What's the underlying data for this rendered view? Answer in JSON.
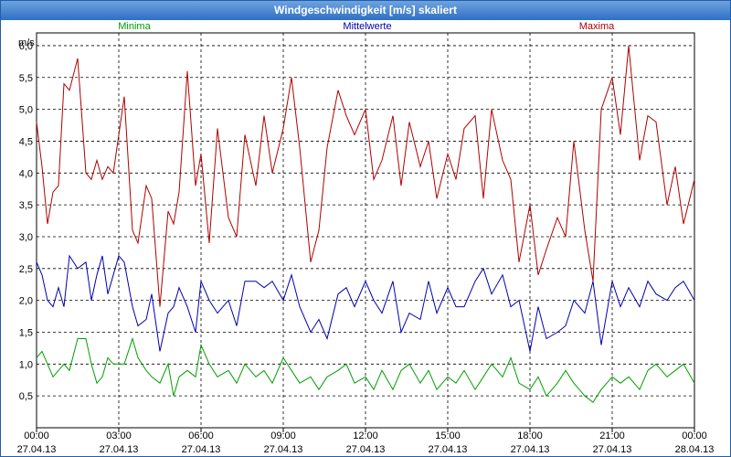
{
  "window": {
    "title": "Windgeschwindigkeit [m/s] skaliert"
  },
  "chart_data": {
    "type": "line",
    "title": "Windgeschwindigkeit [m/s] skaliert",
    "ylabel": "m/s",
    "ylim": [
      0,
      6.2
    ],
    "xlim": [
      0,
      24
    ],
    "y_ticks": [
      "0,5",
      "1,0",
      "1,5",
      "2,0",
      "2,5",
      "3,0",
      "3,5",
      "4,0",
      "4,5",
      "5,0",
      "5,5",
      "6,0"
    ],
    "x_ticks": [
      {
        "time": "00:00",
        "date": "27.04.13"
      },
      {
        "time": "03:00",
        "date": "27.04.13"
      },
      {
        "time": "06:00",
        "date": "27.04.13"
      },
      {
        "time": "09:00",
        "date": "27.04.13"
      },
      {
        "time": "12:00",
        "date": "27.04.13"
      },
      {
        "time": "15:00",
        "date": "27.04.13"
      },
      {
        "time": "18:00",
        "date": "27.04.13"
      },
      {
        "time": "21:00",
        "date": "27.04.13"
      },
      {
        "time": "00:00",
        "date": "28.04.13"
      }
    ],
    "grid": true,
    "series": [
      {
        "name": "Minima",
        "color": "#00a000",
        "x": [
          0,
          0.2,
          0.4,
          0.6,
          0.8,
          1,
          1.2,
          1.5,
          1.8,
          2,
          2.2,
          2.4,
          2.6,
          2.8,
          3,
          3.2,
          3.5,
          3.7,
          4,
          4.2,
          4.5,
          4.8,
          5,
          5.2,
          5.5,
          5.8,
          6,
          6.3,
          6.6,
          7,
          7.3,
          7.6,
          8,
          8.3,
          8.6,
          9,
          9.3,
          9.6,
          10,
          10.3,
          10.6,
          11,
          11.3,
          11.6,
          12,
          12.3,
          12.6,
          13,
          13.3,
          13.6,
          14,
          14.3,
          14.6,
          15,
          15.3,
          15.6,
          16,
          16.3,
          16.6,
          17,
          17.3,
          17.6,
          18,
          18.3,
          18.6,
          19,
          19.3,
          19.6,
          20,
          20.3,
          20.6,
          21,
          21.3,
          21.6,
          22,
          22.3,
          22.6,
          23,
          23.3,
          23.6,
          24
        ],
        "y": [
          1.1,
          1.2,
          1.0,
          0.8,
          0.9,
          1.0,
          0.9,
          1.4,
          1.4,
          1.0,
          0.7,
          0.8,
          1.1,
          1.0,
          1.0,
          1.0,
          1.4,
          1.1,
          0.9,
          0.8,
          0.7,
          1.0,
          0.5,
          0.8,
          0.9,
          0.8,
          1.3,
          1.0,
          0.8,
          0.9,
          0.7,
          1.0,
          0.8,
          0.9,
          0.7,
          1.1,
          0.9,
          0.7,
          0.8,
          0.6,
          0.8,
          0.9,
          1.0,
          0.7,
          0.8,
          0.6,
          0.9,
          0.6,
          0.9,
          1.0,
          0.7,
          0.9,
          0.6,
          0.8,
          0.7,
          0.9,
          0.6,
          0.8,
          1.0,
          0.8,
          1.1,
          0.7,
          0.6,
          0.8,
          0.5,
          0.7,
          0.9,
          0.7,
          0.5,
          0.4,
          0.6,
          0.8,
          0.7,
          0.8,
          0.6,
          0.9,
          1.0,
          0.8,
          0.9,
          1.0,
          0.7
        ]
      },
      {
        "name": "Mittelwerte",
        "color": "#0000b0",
        "x": [
          0,
          0.2,
          0.4,
          0.6,
          0.8,
          1,
          1.2,
          1.5,
          1.8,
          2,
          2.2,
          2.4,
          2.6,
          2.8,
          3,
          3.2,
          3.5,
          3.7,
          4,
          4.2,
          4.5,
          4.8,
          5,
          5.2,
          5.5,
          5.8,
          6,
          6.3,
          6.6,
          7,
          7.3,
          7.6,
          8,
          8.3,
          8.6,
          9,
          9.3,
          9.6,
          10,
          10.3,
          10.6,
          11,
          11.3,
          11.6,
          12,
          12.3,
          12.6,
          13,
          13.3,
          13.6,
          14,
          14.3,
          14.6,
          15,
          15.3,
          15.6,
          16,
          16.3,
          16.6,
          17,
          17.3,
          17.6,
          18,
          18.3,
          18.6,
          19,
          19.3,
          19.6,
          20,
          20.3,
          20.6,
          21,
          21.3,
          21.6,
          22,
          22.3,
          22.6,
          23,
          23.3,
          23.6,
          24
        ],
        "y": [
          2.6,
          2.4,
          2.0,
          1.9,
          2.2,
          1.9,
          2.7,
          2.5,
          2.6,
          2.0,
          2.4,
          2.7,
          2.1,
          2.4,
          2.7,
          2.6,
          1.9,
          1.6,
          1.7,
          2.1,
          1.2,
          1.8,
          1.9,
          2.2,
          1.9,
          1.5,
          2.3,
          2.0,
          1.8,
          2.0,
          1.6,
          2.3,
          2.3,
          2.2,
          2.3,
          2.0,
          2.4,
          1.9,
          1.5,
          1.7,
          1.4,
          2.1,
          2.2,
          1.9,
          2.3,
          2.0,
          1.8,
          2.3,
          1.5,
          1.8,
          1.7,
          2.3,
          1.8,
          2.2,
          1.9,
          1.9,
          2.3,
          2.5,
          2.1,
          2.4,
          1.9,
          2.0,
          1.2,
          1.9,
          1.4,
          1.5,
          1.6,
          2.0,
          1.8,
          2.3,
          1.3,
          2.3,
          1.9,
          2.2,
          1.9,
          2.3,
          2.1,
          2.0,
          2.2,
          2.3,
          2.0
        ]
      },
      {
        "name": "Maxima",
        "color": "#b00000",
        "x": [
          0,
          0.2,
          0.4,
          0.6,
          0.8,
          1,
          1.2,
          1.5,
          1.8,
          2,
          2.2,
          2.4,
          2.6,
          2.8,
          3,
          3.2,
          3.5,
          3.7,
          4,
          4.2,
          4.5,
          4.8,
          5,
          5.2,
          5.5,
          5.8,
          6,
          6.3,
          6.6,
          7,
          7.3,
          7.6,
          8,
          8.3,
          8.6,
          9,
          9.3,
          9.6,
          10,
          10.3,
          10.6,
          11,
          11.3,
          11.6,
          12,
          12.3,
          12.6,
          13,
          13.3,
          13.6,
          14,
          14.3,
          14.6,
          15,
          15.3,
          15.6,
          16,
          16.3,
          16.6,
          17,
          17.3,
          17.6,
          18,
          18.3,
          18.6,
          19,
          19.3,
          19.6,
          20,
          20.3,
          20.6,
          21,
          21.3,
          21.6,
          22,
          22.3,
          22.6,
          23,
          23.3,
          23.6,
          24
        ],
        "y": [
          4.8,
          4.1,
          3.2,
          3.7,
          3.8,
          5.4,
          5.3,
          5.8,
          4.0,
          3.9,
          4.2,
          3.9,
          4.1,
          4.0,
          4.6,
          5.2,
          3.1,
          2.9,
          3.8,
          3.6,
          1.9,
          3.4,
          3.2,
          3.7,
          5.6,
          3.8,
          4.3,
          2.9,
          4.7,
          3.3,
          3.0,
          4.6,
          3.8,
          4.9,
          4.0,
          4.7,
          5.5,
          4.4,
          2.6,
          3.1,
          4.4,
          5.3,
          4.9,
          4.6,
          5.0,
          3.9,
          4.2,
          4.9,
          3.8,
          4.8,
          4.1,
          4.5,
          3.6,
          4.3,
          3.9,
          4.7,
          4.9,
          3.6,
          5.0,
          4.2,
          3.9,
          2.6,
          3.5,
          2.4,
          2.8,
          3.3,
          3.0,
          4.5,
          3.1,
          2.3,
          5.0,
          5.5,
          4.6,
          6.0,
          4.2,
          4.9,
          4.8,
          3.5,
          4.1,
          3.2,
          3.9
        ]
      }
    ]
  }
}
